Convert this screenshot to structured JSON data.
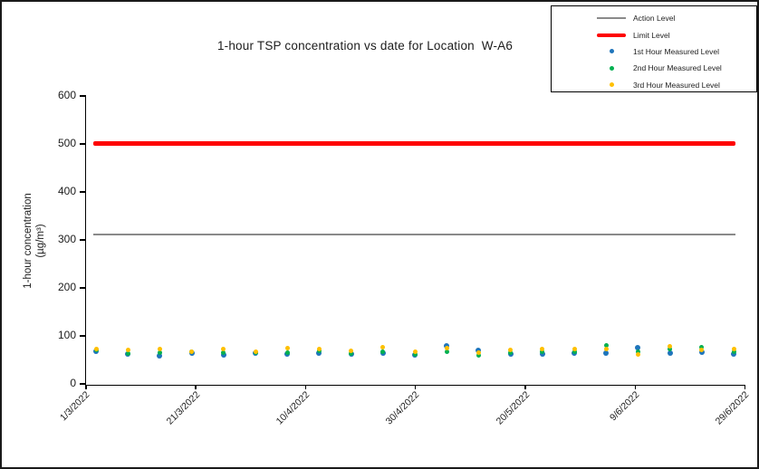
{
  "window": {
    "background_color": "#ffffff",
    "border_color": "#1a1a1a"
  },
  "chart": {
    "title": "1-hour TSP concentration vs date for Location  W-A6",
    "y_axis": {
      "label_line1": "1-hour concentration",
      "label_line2": "(µg/m³)",
      "ticks": [
        0,
        100,
        200,
        300,
        400,
        500,
        600
      ]
    },
    "x_axis": {
      "tick_labels": [
        "1/3/2022",
        "21/3/2022",
        "10/4/2022",
        "30/4/2022",
        "20/5/2022",
        "9/6/2022",
        "29/6/2022"
      ]
    },
    "legend": {
      "items": [
        {
          "label": "Action Level",
          "swatch": "gray-line",
          "color": "#8A8A8A"
        },
        {
          "label": "Limit Level",
          "swatch": "red-thick-line",
          "color": "#FE0000"
        },
        {
          "label": "1st Hour Measured Level",
          "swatch": "blue-dot",
          "color": "#1F75BB"
        },
        {
          "label": "2nd Hour Measured Level",
          "swatch": "green-dot",
          "color": "#00B050"
        },
        {
          "label": "3rd Hour Measured Level",
          "swatch": "yellow-dot",
          "color": "#FFC000"
        }
      ]
    }
  },
  "chart_data": {
    "type": "scatter",
    "title": "1-hour TSP concentration vs date for Location  W-A6",
    "xlabel": "date",
    "ylabel": "1-hour concentration (µg/m³)",
    "ylim": [
      0,
      600
    ],
    "grid": false,
    "legend_position": "top-right-outside",
    "x_tick_labels": [
      "1/3/2022",
      "21/3/2022",
      "10/4/2022",
      "30/4/2022",
      "20/5/2022",
      "9/6/2022",
      "29/6/2022"
    ],
    "reference_lines": [
      {
        "name": "Action Level",
        "value": 310,
        "color": "#8A8A8A"
      },
      {
        "name": "Limit Level",
        "value": 500,
        "color": "#FE0000"
      }
    ],
    "x": [
      "3/3/2022",
      "9/3/2022",
      "15/3/2022",
      "20/3/2022",
      "26/3/2022",
      "1/4/2022",
      "7/4/2022",
      "12/4/2022",
      "18/4/2022",
      "24/4/2022",
      "30/4/2022",
      "6/5/2022",
      "11/5/2022",
      "17/5/2022",
      "23/5/2022",
      "29/5/2022",
      "3/6/2022",
      "9/6/2022",
      "15/6/2022",
      "21/6/2022",
      "26/6/2022"
    ],
    "series": [
      {
        "name": "1st Hour Measured Level",
        "color": "#1F75BB",
        "values": [
          66,
          60,
          57,
          63,
          58,
          62,
          60,
          63,
          60,
          62,
          58,
          78,
          68,
          60,
          60,
          62,
          63,
          74,
          62,
          64,
          60
        ]
      },
      {
        "name": "2nd Hour Measured Level",
        "color": "#00B050",
        "values": [
          68,
          61,
          64,
          66,
          63,
          64,
          64,
          67,
          62,
          66,
          60,
          65,
          58,
          64,
          65,
          66,
          78,
          66,
          70,
          74,
          66
        ]
      },
      {
        "name": "3rd Hour Measured Level",
        "color": "#FFC000",
        "values": [
          70,
          68,
          71,
          65,
          70,
          66,
          73,
          70,
          67,
          74,
          66,
          72,
          64,
          69,
          70,
          70,
          70,
          60,
          76,
          68,
          70
        ]
      }
    ]
  }
}
